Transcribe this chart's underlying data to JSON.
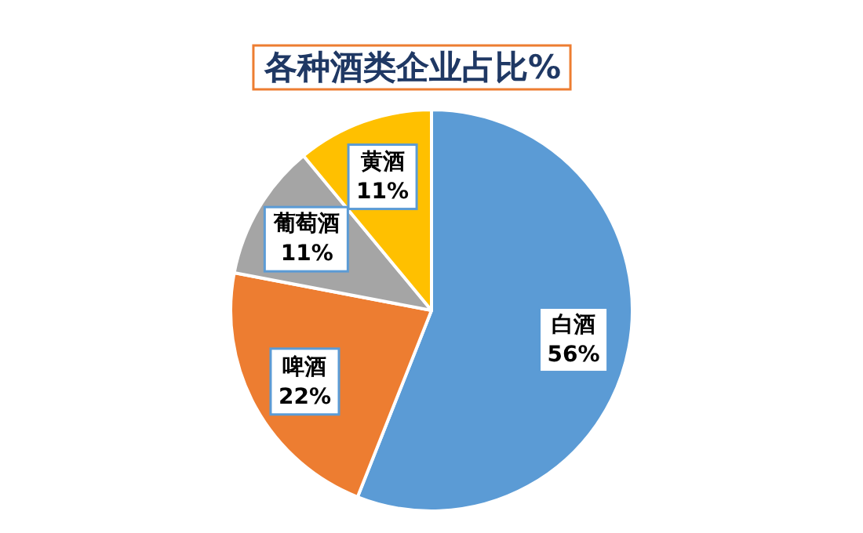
{
  "chart_data": {
    "type": "pie",
    "title": "各种酒类企业占比%",
    "categories": [
      "白酒",
      "啤酒",
      "葡萄酒",
      "黄酒"
    ],
    "values": [
      56,
      22,
      11,
      11
    ],
    "colors": [
      "#5b9bd5",
      "#ed7d31",
      "#a5a5a5",
      "#ffc000"
    ],
    "value_labels": [
      "56%",
      "22%",
      "11%",
      "11%"
    ]
  }
}
